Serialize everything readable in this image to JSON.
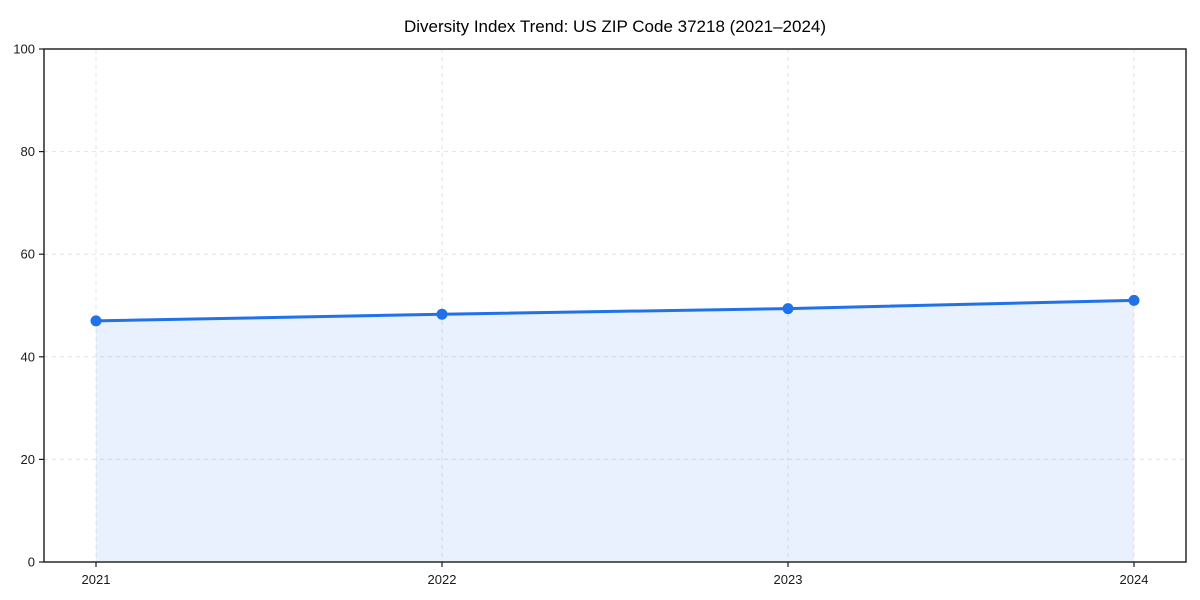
{
  "chart_data": {
    "type": "line",
    "title": "Diversity Index Trend: US ZIP Code 37218 (2021–2024)",
    "categories": [
      "2021",
      "2022",
      "2023",
      "2024"
    ],
    "x": [
      2021,
      2022,
      2023,
      2024
    ],
    "series": [
      {
        "name": "Diversity Index",
        "values": [
          47.0,
          48.3,
          49.4,
          51.0
        ]
      }
    ],
    "xlabel": "",
    "ylabel": "",
    "ylim": [
      0,
      100
    ],
    "yticks": [
      0,
      20,
      40,
      60,
      80,
      100
    ],
    "ytick_labels": [
      "0",
      "20",
      "40",
      "60",
      "80",
      "100"
    ],
    "grid": "on",
    "grid_style": "dashed",
    "legend": "none",
    "marker": "circle",
    "area_fill": "tozero",
    "colors": {
      "line": "#2172e8",
      "marker": "#2172e8",
      "area_fill": "#e9f1fd",
      "grid": "#e3e3e3",
      "axis": "#1a1a1a",
      "tick_label": "#1a1a1a",
      "title": "#000000",
      "background": "#ffffff"
    }
  }
}
